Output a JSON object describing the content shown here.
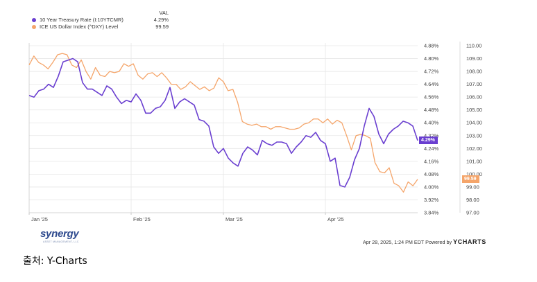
{
  "legend": {
    "header": "VAL",
    "items": [
      {
        "label": "10 Year Treasury Rate (I:10YTCMR)",
        "value": "4.29%",
        "color": "#6a3fd0"
      },
      {
        "label": "ICE US Dollar Index (^DXY) Level",
        "value": "99.59",
        "color": "#f5a56a"
      }
    ]
  },
  "chart_data": {
    "type": "line",
    "x_ticks": [
      "Jan '25",
      "Feb '25",
      "Mar '25",
      "Apr '25"
    ],
    "y_left": {
      "ticks": [
        "4.88%",
        "4.80%",
        "4.72%",
        "4.64%",
        "4.56%",
        "4.48%",
        "4.40%",
        "4.32%",
        "4.24%",
        "4.16%",
        "4.08%",
        "4.00%",
        "3.92%",
        "3.84%"
      ],
      "ylim": [
        3.84,
        4.88
      ]
    },
    "y_right": {
      "ticks": [
        "110.00",
        "109.00",
        "108.00",
        "107.00",
        "106.00",
        "105.00",
        "104.00",
        "103.00",
        "102.00",
        "101.00",
        "100.00",
        "99.00",
        "98.00",
        "97.00"
      ],
      "ylim": [
        97.0,
        110.0
      ]
    },
    "series": [
      {
        "name": "10 Year Treasury Rate (I:10YTCMR)",
        "axis": "left",
        "color": "#6a3fd0",
        "last_label": "4.29%",
        "values": [
          4.57,
          4.56,
          4.6,
          4.61,
          4.64,
          4.62,
          4.69,
          4.78,
          4.79,
          4.8,
          4.78,
          4.65,
          4.61,
          4.61,
          4.59,
          4.57,
          4.63,
          4.61,
          4.56,
          4.52,
          4.54,
          4.53,
          4.58,
          4.54,
          4.46,
          4.46,
          4.49,
          4.5,
          4.54,
          4.62,
          4.49,
          4.53,
          4.55,
          4.53,
          4.51,
          4.42,
          4.41,
          4.38,
          4.25,
          4.21,
          4.24,
          4.18,
          4.15,
          4.13,
          4.21,
          4.25,
          4.23,
          4.2,
          4.29,
          4.27,
          4.26,
          4.28,
          4.28,
          4.27,
          4.21,
          4.25,
          4.28,
          4.32,
          4.31,
          4.34,
          4.29,
          4.27,
          4.16,
          4.18,
          4.01,
          4.0,
          4.06,
          4.17,
          4.24,
          4.38,
          4.49,
          4.44,
          4.33,
          4.27,
          4.33,
          4.36,
          4.38,
          4.41,
          4.4,
          4.38,
          4.29
        ]
      },
      {
        "name": "ICE US Dollar Index (^DXY) Level",
        "axis": "right",
        "color": "#f5a56a",
        "last_label": "99.59",
        "values": [
          108.5,
          109.2,
          108.7,
          108.5,
          108.2,
          108.7,
          109.3,
          109.4,
          109.3,
          108.5,
          108.3,
          108.9,
          108.0,
          107.4,
          108.3,
          107.7,
          107.6,
          108.0,
          107.9,
          108.0,
          108.6,
          108.4,
          108.6,
          107.7,
          107.4,
          107.8,
          107.9,
          107.6,
          107.9,
          107.5,
          107.0,
          107.0,
          106.6,
          106.8,
          107.2,
          106.9,
          106.6,
          106.8,
          106.5,
          106.7,
          107.5,
          107.2,
          106.5,
          106.6,
          105.6,
          104.1,
          103.9,
          103.8,
          103.9,
          103.7,
          103.7,
          103.5,
          103.7,
          103.7,
          103.6,
          103.5,
          103.5,
          103.6,
          103.9,
          104.0,
          104.3,
          104.3,
          104.0,
          104.3,
          103.9,
          104.2,
          104.0,
          103.0,
          101.9,
          103.0,
          103.1,
          103.0,
          102.8,
          100.9,
          100.2,
          100.1,
          100.5,
          99.3,
          99.1,
          98.6,
          99.4,
          99.1,
          99.6
        ]
      }
    ],
    "grid": true,
    "legend_position": "top-left"
  },
  "footer": {
    "logo_text": "synergy",
    "logo_subtext": "ASSET MANAGEMENT, LLC",
    "timestamp": "Apr 28, 2025, 1:24 PM EDT Powered by",
    "brand": "YCHARTS"
  },
  "source": "출처: Y-Charts"
}
